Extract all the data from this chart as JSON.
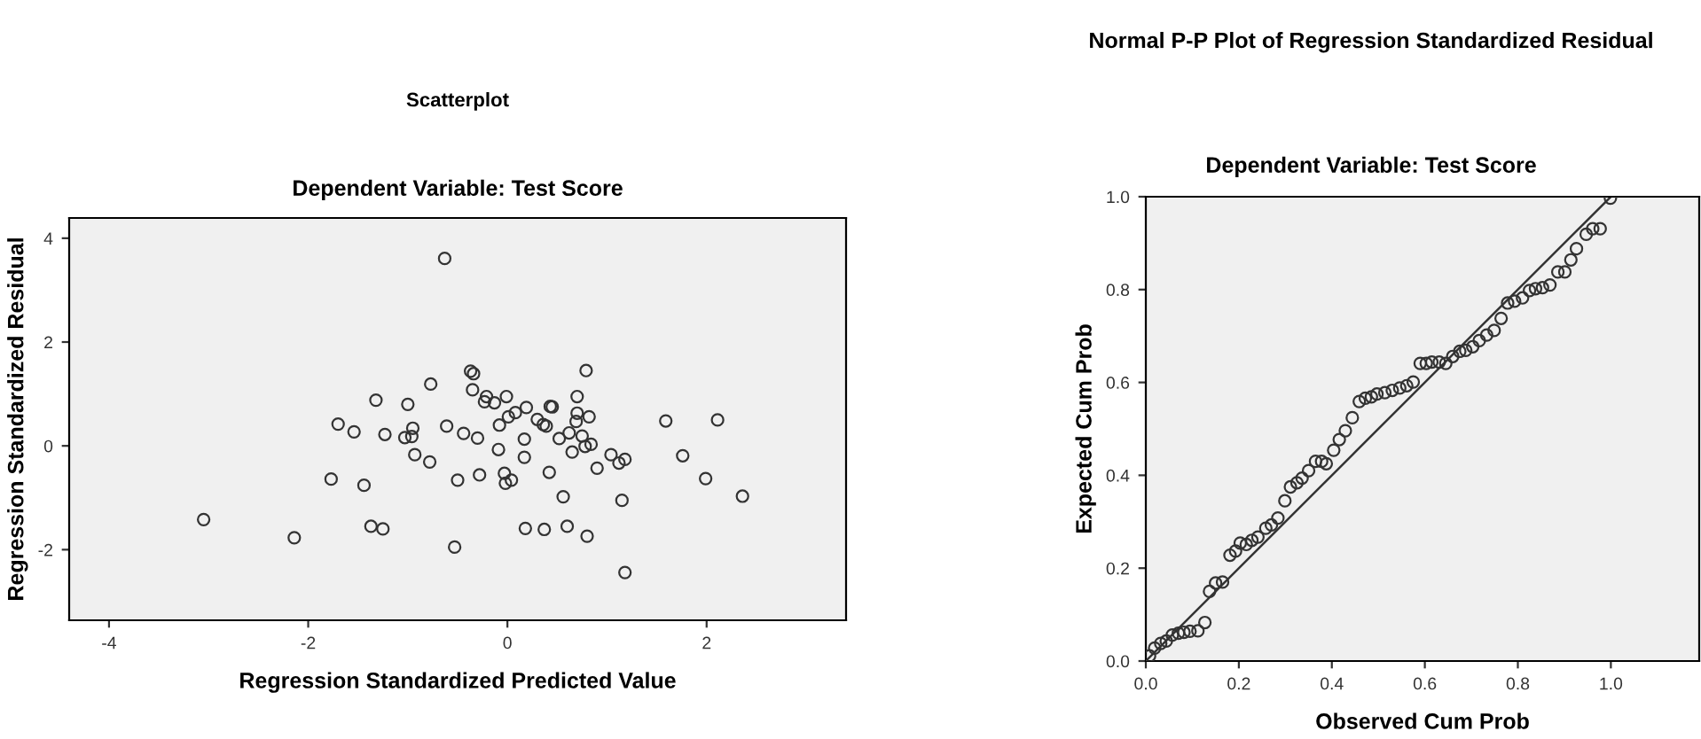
{
  "chart_data": [
    {
      "type": "scatter",
      "title": "Scatterplot",
      "subtitle": "Dependent Variable: Test Score",
      "xlabel": "Regression Standardized Predicted Value",
      "ylabel": "Regression Standardized Residual",
      "xlim": [
        -4.4,
        3.4
      ],
      "ylim": [
        -3.36,
        4.39
      ],
      "xticks": [
        -4,
        -2,
        0,
        2
      ],
      "yticks": [
        -2,
        0,
        2,
        4
      ],
      "grid": false,
      "legend": false,
      "marker": "circle",
      "series": [
        {
          "color": "#333333",
          "x": [
            -0.63,
            -3.05,
            -2.14,
            -1.77,
            -1.7,
            -1.54,
            -1.44,
            -1.37,
            -1.25,
            -1.32,
            -1.23,
            -1.03,
            -1.0,
            -0.95,
            -0.96,
            -0.93,
            -0.78,
            -0.77,
            -0.61,
            -0.53,
            -0.5,
            -0.44,
            -0.37,
            -0.34,
            -0.35,
            -0.3,
            -0.28,
            -0.23,
            -0.21,
            -0.13,
            -0.09,
            -0.08,
            -0.03,
            -0.02,
            -0.01,
            0.01,
            0.04,
            0.08,
            0.17,
            0.17,
            0.19,
            0.18,
            0.3,
            0.36,
            0.37,
            0.39,
            0.42,
            0.43,
            0.45,
            0.52,
            0.56,
            0.6,
            0.62,
            0.65,
            0.69,
            0.7,
            0.7,
            0.75,
            0.78,
            0.79,
            0.8,
            0.82,
            0.84,
            0.9,
            1.04,
            1.12,
            1.15,
            1.18,
            1.18,
            1.59,
            1.76,
            1.99,
            2.11,
            2.36
          ],
          "values": [
            3.61,
            -1.42,
            -1.77,
            -0.64,
            0.42,
            0.27,
            -0.76,
            -1.55,
            -1.6,
            0.88,
            0.22,
            0.16,
            0.8,
            0.34,
            0.18,
            -0.17,
            -0.31,
            1.19,
            0.38,
            -1.95,
            -0.66,
            0.24,
            1.44,
            1.39,
            1.08,
            0.15,
            -0.56,
            0.85,
            0.95,
            0.83,
            -0.07,
            0.4,
            -0.53,
            -0.72,
            0.95,
            0.56,
            -0.66,
            0.64,
            0.13,
            -0.22,
            0.74,
            -1.59,
            0.51,
            0.41,
            -1.61,
            0.38,
            -0.51,
            0.76,
            0.75,
            0.14,
            -0.98,
            -1.55,
            0.25,
            -0.12,
            0.47,
            0.95,
            0.63,
            0.19,
            -0.01,
            1.45,
            -1.74,
            0.56,
            0.03,
            -0.43,
            -0.17,
            -0.33,
            -1.05,
            -0.26,
            -2.44,
            0.48,
            -0.19,
            -0.63,
            0.5,
            -0.97
          ]
        }
      ]
    },
    {
      "type": "scatter",
      "title": "Normal P-P Plot of Regression Standardized Residual",
      "subtitle": "Dependent Variable: Test Score",
      "xlabel": "Observed Cum Prob",
      "ylabel": "Expected Cum Prob",
      "xlim": [
        0,
        1.19
      ],
      "ylim": [
        0,
        1
      ],
      "xticks": [
        {
          "value": 0,
          "label": "0.0"
        },
        0.2,
        0.4,
        0.6,
        0.8,
        {
          "value": 1,
          "label": "1.0"
        }
      ],
      "yticks": [
        {
          "value": 0,
          "label": "0.0"
        },
        0.2,
        0.4,
        0.6,
        0.8,
        {
          "value": 1,
          "label": "1.0"
        }
      ],
      "grid": false,
      "legend": false,
      "marker": "circle",
      "series": [
        {
          "type": "scatter",
          "color": "#333333",
          "x": [
            0.008,
            0.019,
            0.032,
            0.044,
            0.057,
            0.07,
            0.082,
            0.095,
            0.112,
            0.127,
            0.137,
            0.15,
            0.165,
            0.181,
            0.193,
            0.203,
            0.216,
            0.228,
            0.241,
            0.258,
            0.27,
            0.284,
            0.299,
            0.311,
            0.325,
            0.336,
            0.35,
            0.365,
            0.378,
            0.388,
            0.404,
            0.416,
            0.429,
            0.444,
            0.459,
            0.472,
            0.485,
            0.497,
            0.514,
            0.53,
            0.546,
            0.561,
            0.575,
            0.59,
            0.603,
            0.615,
            0.631,
            0.645,
            0.66,
            0.675,
            0.688,
            0.703,
            0.717,
            0.733,
            0.749,
            0.764,
            0.778,
            0.793,
            0.81,
            0.825,
            0.838,
            0.853,
            0.869,
            0.886,
            0.901,
            0.914,
            0.926,
            0.947,
            0.961,
            0.977,
            0.999
          ],
          "values": [
            0.011,
            0.028,
            0.038,
            0.043,
            0.056,
            0.06,
            0.062,
            0.064,
            0.065,
            0.083,
            0.15,
            0.168,
            0.17,
            0.228,
            0.237,
            0.254,
            0.251,
            0.26,
            0.267,
            0.286,
            0.293,
            0.308,
            0.345,
            0.375,
            0.384,
            0.394,
            0.41,
            0.43,
            0.43,
            0.425,
            0.454,
            0.477,
            0.496,
            0.524,
            0.559,
            0.566,
            0.569,
            0.575,
            0.578,
            0.583,
            0.588,
            0.593,
            0.601,
            0.641,
            0.641,
            0.644,
            0.644,
            0.641,
            0.656,
            0.667,
            0.669,
            0.677,
            0.69,
            0.702,
            0.712,
            0.738,
            0.771,
            0.775,
            0.782,
            0.798,
            0.802,
            0.804,
            0.81,
            0.838,
            0.838,
            0.864,
            0.888,
            0.919,
            0.931,
            0.931,
            0.997
          ]
        },
        {
          "type": "line",
          "color": "#333333",
          "marker": "none",
          "x": [
            0,
            1
          ],
          "values": [
            0,
            1
          ]
        }
      ]
    }
  ]
}
